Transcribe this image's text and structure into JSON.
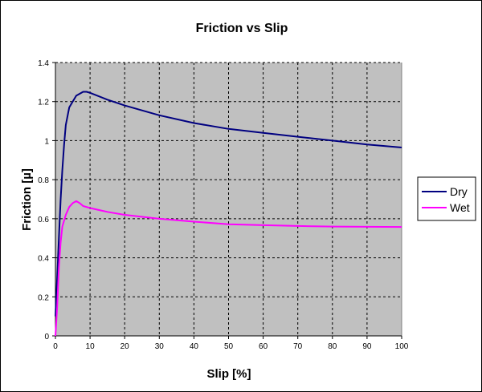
{
  "chart_data": {
    "type": "line",
    "title": "Friction vs Slip",
    "xlabel": "Slip [%]",
    "ylabel": "Friction [µ]",
    "xlim": [
      0,
      100
    ],
    "ylim": [
      0,
      1.4
    ],
    "xticks": [
      0,
      10,
      20,
      30,
      40,
      50,
      60,
      70,
      80,
      90,
      100
    ],
    "yticks": [
      0,
      0.2,
      0.4,
      0.6,
      0.8,
      1,
      1.2,
      1.4
    ],
    "ytick_labels": [
      "0",
      "0.2",
      "0.4",
      "0.6",
      "0.8",
      "1",
      "1.2",
      "1.4"
    ],
    "grid": true,
    "background": "#c0c0c0",
    "legend_placement": "right",
    "series": [
      {
        "name": "Dry",
        "color": "#000080",
        "x": [
          0,
          0.5,
          1,
          1.5,
          2,
          2.5,
          3,
          4,
          5,
          6,
          8,
          9,
          10,
          15,
          20,
          30,
          40,
          50,
          60,
          70,
          80,
          90,
          100
        ],
        "y": [
          0.1,
          0.3,
          0.5,
          0.7,
          0.85,
          0.98,
          1.08,
          1.17,
          1.2,
          1.23,
          1.25,
          1.25,
          1.245,
          1.21,
          1.18,
          1.13,
          1.09,
          1.06,
          1.04,
          1.02,
          1.0,
          0.98,
          0.965
        ]
      },
      {
        "name": "Wet",
        "color": "#ff00ff",
        "x": [
          0,
          0.5,
          1,
          1.5,
          2,
          3,
          4,
          5,
          6,
          7,
          8,
          10,
          15,
          20,
          30,
          40,
          50,
          60,
          70,
          80,
          100
        ],
        "y": [
          0,
          0.15,
          0.35,
          0.48,
          0.56,
          0.62,
          0.66,
          0.68,
          0.69,
          0.68,
          0.665,
          0.655,
          0.635,
          0.62,
          0.6,
          0.585,
          0.572,
          0.567,
          0.563,
          0.56,
          0.558
        ]
      }
    ]
  }
}
